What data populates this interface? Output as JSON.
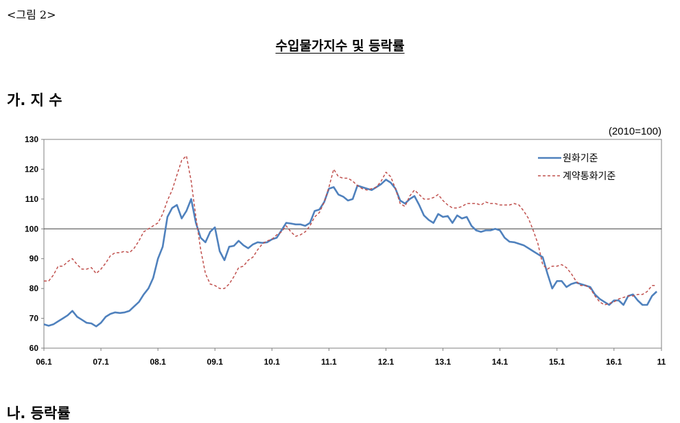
{
  "figure_label": "<그림 2>",
  "title": "수입물가지수 및 등락률",
  "section_a": "가. 지 수",
  "section_b": "나. 등락률",
  "chart_data": {
    "type": "line",
    "unit_note": "(2010=100)",
    "ylim": [
      60,
      130
    ],
    "yticks": [
      "60",
      "70",
      "80",
      "90",
      "100",
      "110",
      "120",
      "130"
    ],
    "ytick_values": [
      60,
      70,
      80,
      90,
      100,
      110,
      120,
      130
    ],
    "xtick_labels": [
      "06.1",
      "07.1",
      "08.1",
      "09.1",
      "10.1",
      "11.1",
      "12.1",
      "13.1",
      "14.1",
      "15.1",
      "16.1",
      "11"
    ],
    "xtick_index": [
      0,
      12,
      24,
      36,
      48,
      60,
      72,
      84,
      96,
      108,
      120,
      130
    ],
    "reference_line": 100,
    "grid": false,
    "legend_position": "top-right",
    "colors": {
      "won": "#4f81bd",
      "contract": "#c0504d"
    },
    "series": [
      {
        "name": "원화기준",
        "values": [
          68,
          67.5,
          68,
          69,
          70,
          71,
          72.5,
          70.5,
          69.5,
          68.5,
          68.3,
          67.3,
          68.5,
          70.5,
          71.5,
          72,
          71.8,
          72,
          72.5,
          74,
          75.5,
          78,
          80,
          83.5,
          90,
          94,
          104,
          107,
          108,
          103.5,
          106,
          110,
          102,
          97,
          95.5,
          99,
          100.5,
          92.5,
          89.5,
          94,
          94.3,
          96,
          94.5,
          93.5,
          94.8,
          95.5,
          95.3,
          95.5,
          96.5,
          97,
          99.5,
          102,
          101.8,
          101.5,
          101.5,
          101,
          102,
          106,
          106.5,
          109,
          113.5,
          114,
          111.5,
          110.8,
          109.5,
          110,
          114.5,
          114,
          113.5,
          113,
          114,
          115,
          116.5,
          115.5,
          113.5,
          109.5,
          108.5,
          110,
          111,
          108,
          104.5,
          103,
          102,
          105,
          104,
          104.3,
          102,
          104.5,
          103.5,
          104,
          101,
          99.5,
          99,
          99.5,
          99.5,
          100,
          99.5,
          97,
          95.7,
          95.5,
          95,
          94.5,
          93.5,
          92.5,
          91.5,
          90.5,
          85,
          80,
          82.5,
          82.5,
          80.5,
          81.5,
          82,
          81.5,
          81,
          80.5,
          78,
          76.5,
          75.5,
          74.5,
          76,
          76,
          74.5,
          77.5,
          78,
          76,
          74.5,
          74.5,
          77.5,
          79
        ]
      },
      {
        "name": "계약통화기준",
        "values": [
          82.5,
          82.5,
          84.5,
          87.5,
          87.5,
          89,
          90,
          88,
          86.5,
          86.5,
          87,
          85,
          86.5,
          88.5,
          91,
          92,
          92,
          92.5,
          92,
          93.5,
          96,
          99,
          100,
          101,
          102,
          105,
          109.5,
          113,
          118,
          123,
          124.5,
          116,
          104,
          93,
          85,
          81.5,
          81,
          80,
          80,
          81.5,
          84,
          87,
          87.5,
          89.5,
          90.5,
          93,
          95,
          96,
          96.5,
          98,
          99,
          101,
          99,
          97.5,
          98,
          99,
          101,
          104,
          105.5,
          109,
          114,
          120,
          117.5,
          117,
          117,
          116,
          114.5,
          113.5,
          113,
          113.5,
          114,
          116,
          119,
          117.5,
          113.5,
          108.5,
          107.5,
          111,
          113,
          111.5,
          110,
          110,
          110.5,
          111.5,
          109.5,
          108,
          107,
          107,
          107.5,
          108.5,
          108.5,
          108.5,
          108,
          109,
          108.5,
          108.5,
          108,
          108,
          108,
          108.5,
          108,
          106,
          103.5,
          99.5,
          95,
          88,
          86.5,
          87.5,
          87.5,
          88,
          87,
          85,
          82.5,
          81,
          81,
          80,
          77.5,
          75.5,
          74.5,
          75,
          75.5,
          76.5,
          77,
          77.5,
          77.5,
          78,
          78,
          79,
          81,
          81
        ]
      }
    ]
  }
}
